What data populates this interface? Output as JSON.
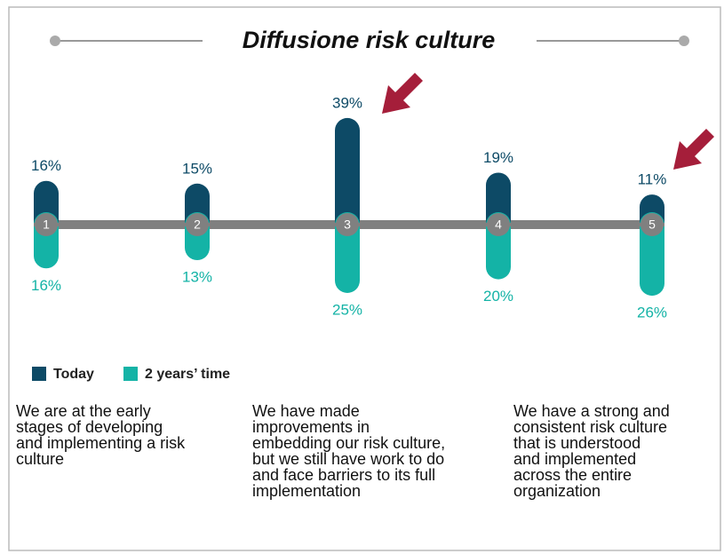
{
  "chart_data": {
    "type": "diverging_bar",
    "title": "Diffusione risk culture",
    "categories": [
      "1",
      "2",
      "3",
      "4",
      "5"
    ],
    "series": [
      {
        "name": "Today",
        "color": "#0d4a66",
        "values": [
          16,
          15,
          39,
          19,
          11
        ],
        "value_labels": [
          "16%",
          "15%",
          "39%",
          "19%",
          "11%"
        ]
      },
      {
        "name": "2 years’ time",
        "color": "#14b3a6",
        "values": [
          16,
          13,
          25,
          20,
          26
        ],
        "value_labels": [
          "16%",
          "13%",
          "25%",
          "20%",
          "26%"
        ]
      }
    ],
    "descriptions": [
      [
        "We are at the early",
        "stages of developing",
        "and implementing  a risk",
        "culture"
      ],
      [
        "We have made",
        "improvements in",
        "embedding our risk culture,",
        "but we still have work to do",
        "and face barriers to its full",
        "implementation"
      ],
      [
        "We have a strong and",
        "consistent risk culture",
        "that is understood",
        "and implemented",
        "across the entire",
        "organization"
      ]
    ]
  }
}
